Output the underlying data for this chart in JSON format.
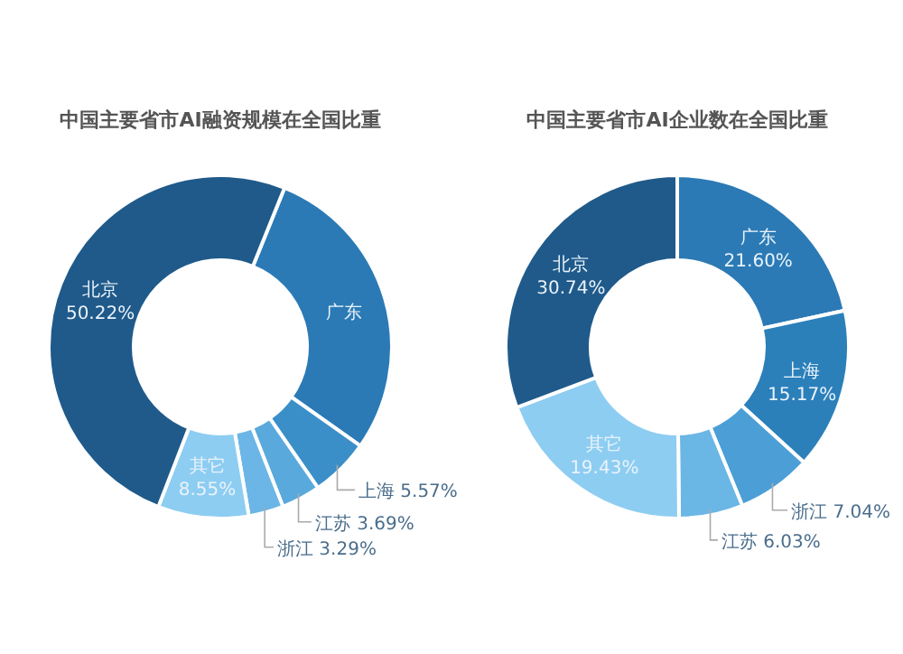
{
  "chart_data": [
    {
      "type": "donut",
      "title": "中国主要省市AI融资规模在全国比重",
      "categories": [
        "广东",
        "上海",
        "江苏",
        "浙江",
        "其它",
        "北京"
      ],
      "values": [
        28.68,
        5.57,
        3.69,
        3.29,
        8.55,
        50.22
      ],
      "colors": [
        "#2b7ab5",
        "#3b8fc8",
        "#5aa9dc",
        "#6bb6e6",
        "#8dcdf2",
        "#1f5a8a"
      ],
      "value_labels": [
        null,
        "5.57%",
        "3.69%",
        "3.29%",
        "8.55%",
        "50.22%"
      ]
    },
    {
      "type": "donut",
      "title": "中国主要省市AI企业数在全国比重",
      "categories": [
        "广东",
        "上海",
        "浙江",
        "江苏",
        "其它",
        "北京"
      ],
      "values": [
        21.6,
        15.17,
        7.04,
        6.03,
        19.43,
        30.74
      ],
      "colors": [
        "#2b7ab5",
        "#2b80ba",
        "#4c9fd6",
        "#6ab7e6",
        "#8dcdf2",
        "#1f5a8a"
      ],
      "value_labels": [
        "21.60%",
        "15.17%",
        "7.04%",
        "6.03%",
        "19.43%",
        "30.74%"
      ]
    }
  ]
}
